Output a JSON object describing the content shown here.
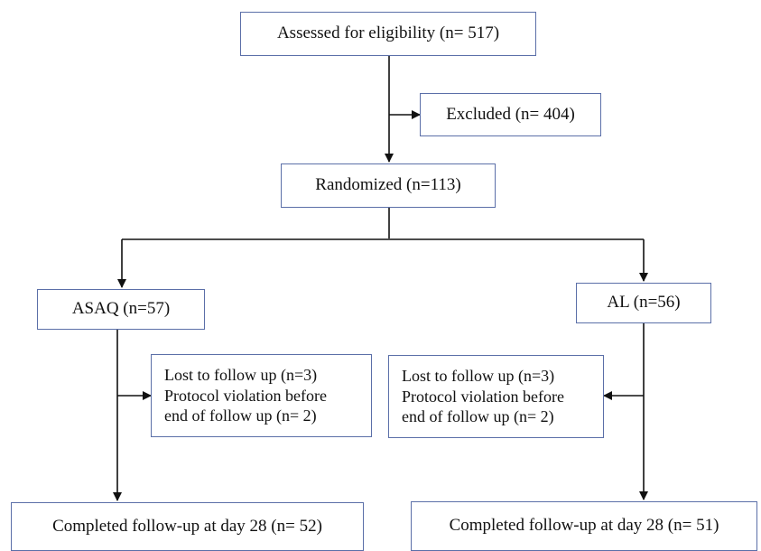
{
  "flowchart": {
    "assessed": "Assessed for eligibility (n= 517)",
    "excluded": "Excluded (n= 404)",
    "randomized": "Randomized (n=113)",
    "left_arm": {
      "group": "ASAQ (n=57)",
      "losses": [
        "Lost to follow up (n=3)",
        "Protocol violation before",
        "end of follow up (n= 2)"
      ],
      "completed": "Completed follow-up at day 28 (n= 52)"
    },
    "right_arm": {
      "group": "AL (n=56)",
      "losses": [
        "Lost to follow up (n=3)",
        "Protocol violation before",
        "end of follow up (n= 2)"
      ],
      "completed": "Completed follow-up at day 28 (n= 51)"
    },
    "colors": {
      "box_border": "#5b6fa8",
      "line": "#111111"
    }
  }
}
